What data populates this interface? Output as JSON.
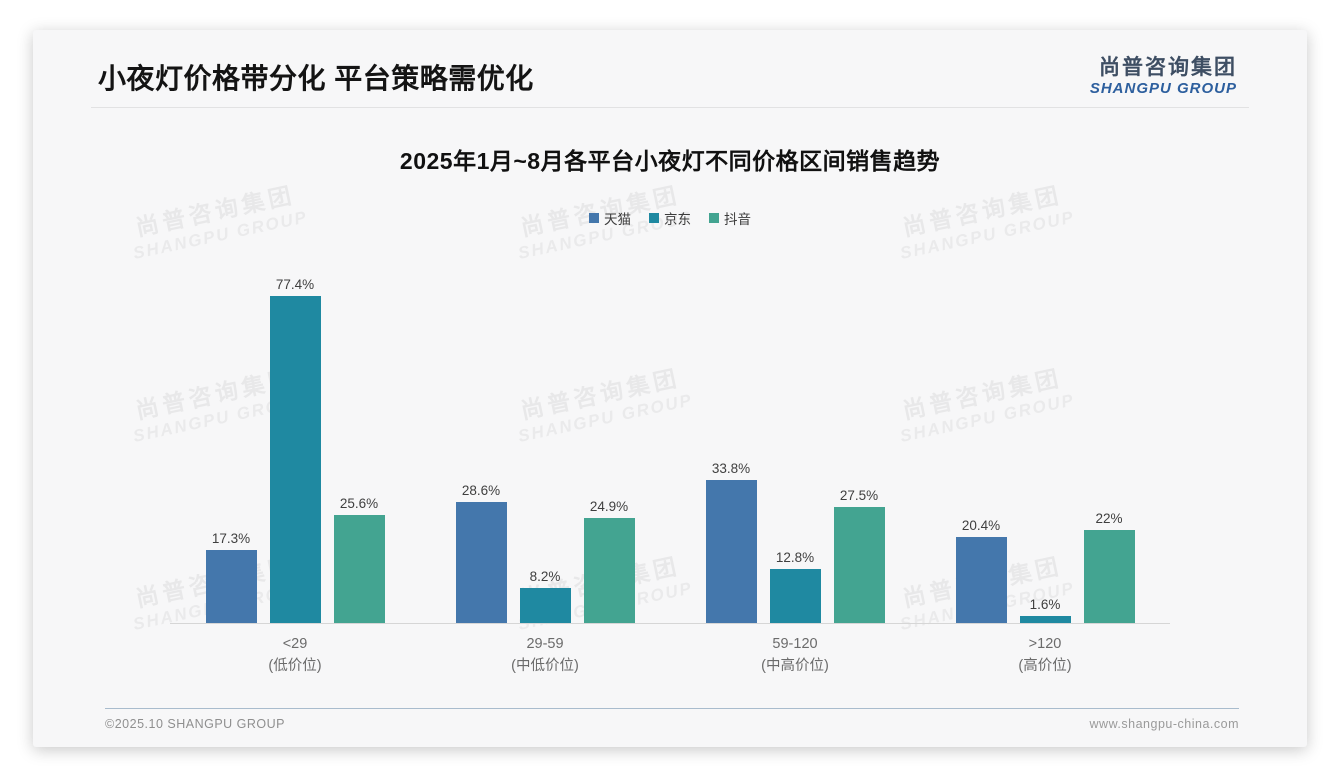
{
  "page": {
    "title": "小夜灯价格带分化 平台策略需优化"
  },
  "logo": {
    "cn": "尚普咨询集团",
    "en": "SHANGPU GROUP"
  },
  "watermark": {
    "cn": "尚普咨询集团",
    "en": "SHANGPU GROUP"
  },
  "footer": {
    "left": "©2025.10 SHANGPU GROUP",
    "right": "www.shangpu-china.com"
  },
  "chart_data": {
    "type": "bar",
    "title": "2025年1月~8月各平台小夜灯不同价格区间销售趋势",
    "categories": [
      {
        "range": "<29",
        "tier": "(低价位)"
      },
      {
        "range": "29-59",
        "tier": "(中低价位)"
      },
      {
        "range": "59-120",
        "tier": "(中高价位)"
      },
      {
        "range": ">120",
        "tier": "(高价位)"
      }
    ],
    "series": [
      {
        "name": "天猫",
        "color": "#4477ac",
        "values": [
          17.3,
          28.6,
          33.8,
          20.4
        ]
      },
      {
        "name": "京东",
        "color": "#1f89a1",
        "values": [
          77.4,
          8.2,
          12.8,
          1.6
        ]
      },
      {
        "name": "抖音",
        "color": "#43a491",
        "values": [
          25.6,
          24.9,
          27.5,
          22.0
        ]
      }
    ],
    "value_suffix": "%",
    "ylim": [
      0,
      80
    ],
    "legend_position": "top",
    "grid": false
  }
}
